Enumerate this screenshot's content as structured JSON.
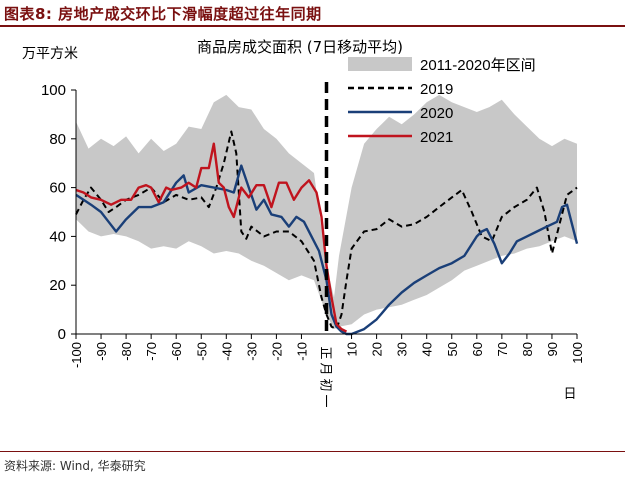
{
  "header": {
    "title": "图表8:  房地产成交环比下滑幅度超过往年同期"
  },
  "footer": {
    "source": "资料来源: Wind, 华泰研究"
  },
  "chart_data": {
    "type": "line",
    "title": "商品房成交面积 (7日移动平均)",
    "ylabel": "万平方米",
    "xlabel": "日",
    "divider_label": "正月初一",
    "xlim": [
      -100,
      100
    ],
    "ylim": [
      0,
      100
    ],
    "xticks": [
      -100,
      -90,
      -80,
      -70,
      -60,
      -50,
      -40,
      -30,
      -20,
      -10,
      10,
      20,
      30,
      40,
      50,
      60,
      70,
      80,
      90,
      100
    ],
    "yticks": [
      0,
      20,
      40,
      60,
      80,
      100
    ],
    "divider_x": 0,
    "range_band": {
      "name": "2011-2020年区间",
      "color": "#c8c8c8",
      "x": [
        -100,
        -95,
        -90,
        -85,
        -80,
        -75,
        -70,
        -65,
        -60,
        -55,
        -50,
        -45,
        -40,
        -35,
        -30,
        -25,
        -20,
        -15,
        -10,
        -5,
        0,
        3,
        5,
        10,
        15,
        20,
        25,
        30,
        35,
        40,
        45,
        50,
        55,
        60,
        65,
        70,
        75,
        80,
        85,
        90,
        95,
        100
      ],
      "upper": [
        87,
        76,
        80,
        77,
        81,
        74,
        80,
        75,
        78,
        85,
        84,
        95,
        98,
        93,
        92,
        84,
        80,
        74,
        70,
        66,
        28,
        15,
        32,
        60,
        78,
        84,
        89,
        86,
        90,
        95,
        98,
        95,
        93,
        91,
        93,
        96,
        90,
        85,
        80,
        77,
        80,
        78
      ],
      "lower": [
        47,
        42,
        40,
        41,
        40,
        38,
        35,
        36,
        35,
        38,
        36,
        33,
        34,
        33,
        30,
        28,
        25,
        22,
        24,
        22,
        8,
        2,
        3,
        4,
        8,
        10,
        11,
        12,
        14,
        16,
        19,
        22,
        26,
        28,
        30,
        32,
        33,
        35,
        36,
        38,
        40,
        38
      ]
    },
    "series": [
      {
        "name": "2019",
        "color": "#000000",
        "dash": "dashed",
        "x": [
          -100,
          -97,
          -94,
          -90,
          -87,
          -84,
          -80,
          -75,
          -70,
          -65,
          -60,
          -55,
          -50,
          -47,
          -44,
          -41,
          -38,
          -36,
          -34,
          -32,
          -30,
          -25,
          -20,
          -15,
          -10,
          -5,
          -2,
          0,
          2,
          4,
          6,
          8,
          10,
          15,
          20,
          25,
          30,
          35,
          40,
          45,
          50,
          54,
          58,
          62,
          66,
          70,
          75,
          80,
          84,
          87,
          90,
          93,
          96,
          100
        ],
        "values": [
          49,
          55,
          60,
          55,
          50,
          52,
          55,
          57,
          60,
          54,
          57,
          55,
          56,
          52,
          60,
          70,
          83,
          74,
          42,
          39,
          44,
          40,
          42,
          42,
          38,
          30,
          15,
          8,
          3,
          2,
          8,
          22,
          35,
          42,
          43,
          47,
          44,
          45,
          48,
          52,
          56,
          59,
          50,
          40,
          38,
          48,
          52,
          55,
          60,
          50,
          33,
          45,
          57,
          60
        ]
      },
      {
        "name": "2020",
        "color": "#1a3f78",
        "dash": "solid",
        "x": [
          -100,
          -97,
          -94,
          -90,
          -87,
          -84,
          -80,
          -75,
          -70,
          -65,
          -60,
          -57,
          -55,
          -50,
          -45,
          -40,
          -37,
          -34,
          -31,
          -28,
          -25,
          -22,
          -18,
          -15,
          -12,
          -9,
          -6,
          -3,
          0,
          2,
          4,
          6,
          8,
          10,
          15,
          20,
          25,
          30,
          35,
          40,
          45,
          50,
          55,
          60,
          62,
          64,
          67,
          70,
          73,
          76,
          80,
          84,
          88,
          92,
          94,
          96,
          98,
          100
        ],
        "values": [
          57,
          55,
          53,
          50,
          46,
          42,
          47,
          52,
          52,
          54,
          62,
          65,
          58,
          61,
          60,
          59,
          58,
          69,
          60,
          51,
          55,
          49,
          48,
          44,
          48,
          46,
          40,
          34,
          22,
          8,
          3,
          1,
          0,
          0,
          2,
          6,
          12,
          17,
          21,
          24,
          27,
          29,
          32,
          40,
          42,
          43,
          37,
          29,
          33,
          38,
          40,
          42,
          44,
          46,
          52,
          53,
          45,
          37
        ]
      },
      {
        "name": "2021",
        "color": "#c0141e",
        "dash": "solid",
        "x": [
          -100,
          -97,
          -94,
          -90,
          -86,
          -82,
          -78,
          -75,
          -72,
          -70,
          -67,
          -64,
          -62,
          -58,
          -55,
          -52,
          -50,
          -47,
          -45,
          -43,
          -41,
          -39,
          -37,
          -34,
          -31,
          -28,
          -25,
          -22,
          -19,
          -16,
          -13,
          -10,
          -7,
          -4,
          -2,
          0,
          2,
          4,
          6,
          8
        ],
        "values": [
          59,
          58,
          56,
          55,
          53,
          55,
          55,
          60,
          61,
          60,
          54,
          60,
          59,
          60,
          62,
          60,
          68,
          68,
          78,
          62,
          60,
          52,
          48,
          60,
          56,
          61,
          61,
          52,
          62,
          62,
          55,
          60,
          63,
          58,
          48,
          28,
          15,
          4,
          2,
          1
        ]
      }
    ]
  }
}
